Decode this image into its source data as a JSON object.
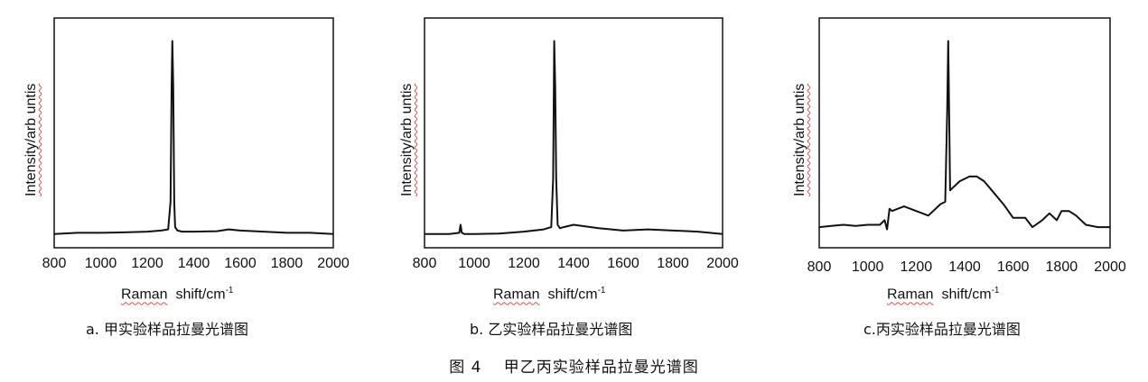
{
  "figure_caption": "图 4　 甲乙丙实验样品拉曼光谱图",
  "chart_data": [
    {
      "type": "line",
      "panel_caption": "a. 甲实验样品拉曼光谱图",
      "ylabel": "Intensity/arb untis",
      "xlabel_main": "Raman",
      "xlabel_unit": "shift/cm",
      "xlabel_sup": "-1",
      "xlim": [
        800,
        2000
      ],
      "ylim": [
        0,
        1
      ],
      "xticks": [
        "800",
        "1000",
        "1200",
        "1400",
        "1600",
        "1800",
        "2000"
      ],
      "series": [
        {
          "x": [
            800,
            900,
            1000,
            1100,
            1200,
            1260,
            1290,
            1300,
            1305,
            1308,
            1312,
            1316,
            1320,
            1330,
            1350,
            1400,
            1500,
            1550,
            1600,
            1700,
            1800,
            1900,
            2000
          ],
          "y": [
            0.06,
            0.065,
            0.065,
            0.067,
            0.07,
            0.075,
            0.08,
            0.2,
            0.7,
            0.9,
            0.7,
            0.2,
            0.09,
            0.075,
            0.07,
            0.07,
            0.072,
            0.08,
            0.075,
            0.07,
            0.065,
            0.065,
            0.06
          ]
        }
      ]
    },
    {
      "type": "line",
      "panel_caption": "b. 乙实验样品拉曼光谱图",
      "ylabel": "Intensity/arb untis",
      "xlabel_main": "Raman",
      "xlabel_unit": "shift/cm",
      "xlabel_sup": "-1",
      "xlim": [
        800,
        2000
      ],
      "ylim": [
        0,
        1
      ],
      "xticks": [
        "800",
        "1000",
        "1200",
        "1400",
        "1600",
        "1800",
        "2000"
      ],
      "series": [
        {
          "x": [
            800,
            900,
            940,
            945,
            950,
            960,
            1000,
            1100,
            1200,
            1280,
            1310,
            1318,
            1322,
            1326,
            1330,
            1336,
            1345,
            1360,
            1400,
            1500,
            1600,
            1700,
            1800,
            1900,
            2000
          ],
          "y": [
            0.06,
            0.06,
            0.065,
            0.1,
            0.065,
            0.06,
            0.06,
            0.062,
            0.07,
            0.08,
            0.09,
            0.3,
            0.9,
            0.7,
            0.3,
            0.1,
            0.085,
            0.09,
            0.1,
            0.085,
            0.075,
            0.08,
            0.075,
            0.07,
            0.06
          ]
        }
      ]
    },
    {
      "type": "line",
      "panel_caption": "c.丙实验样品拉曼光谱图",
      "ylabel": "Intensity/arb untis",
      "xlabel_main": "Raman",
      "xlabel_unit": "shift/cm",
      "xlabel_sup": "-1",
      "xlim": [
        800,
        2000
      ],
      "ylim": [
        0,
        1
      ],
      "xticks": [
        "800",
        "1000",
        "1200",
        "1400",
        "1600",
        "1800",
        "2000"
      ],
      "series": [
        {
          "x": [
            800,
            850,
            900,
            950,
            1000,
            1050,
            1070,
            1080,
            1090,
            1100,
            1150,
            1200,
            1250,
            1300,
            1320,
            1328,
            1332,
            1336,
            1340,
            1350,
            1380,
            1420,
            1450,
            1480,
            1520,
            1560,
            1600,
            1650,
            1680,
            1720,
            1750,
            1780,
            1800,
            1830,
            1860,
            1900,
            1950,
            2000
          ],
          "y": [
            0.09,
            0.095,
            0.1,
            0.095,
            0.1,
            0.1,
            0.12,
            0.08,
            0.17,
            0.16,
            0.18,
            0.16,
            0.14,
            0.19,
            0.2,
            0.6,
            0.9,
            0.6,
            0.25,
            0.26,
            0.29,
            0.31,
            0.31,
            0.29,
            0.24,
            0.19,
            0.13,
            0.13,
            0.09,
            0.12,
            0.15,
            0.12,
            0.16,
            0.16,
            0.14,
            0.1,
            0.09,
            0.09
          ]
        }
      ]
    }
  ]
}
